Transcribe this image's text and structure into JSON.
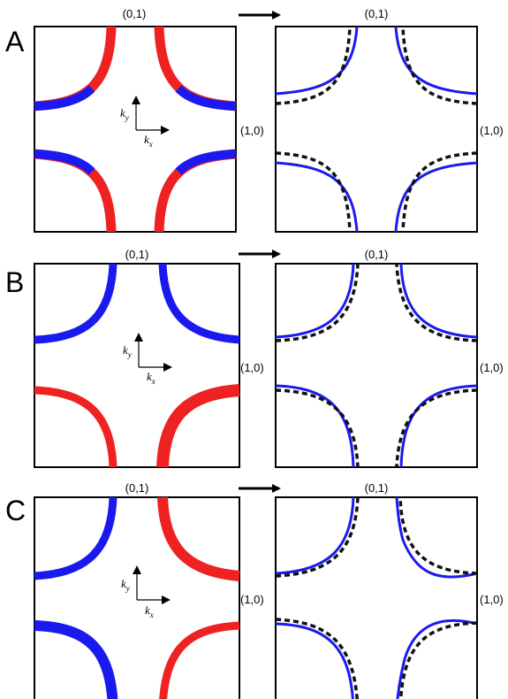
{
  "rows": [
    {
      "letter": "A",
      "left": {
        "top_label": "(0,1)",
        "right_label": "(1,0)",
        "ky": "k",
        "ky_sub": "y",
        "kx": "k",
        "kx_sub": "x"
      },
      "right": {
        "top_label": "(0,1)",
        "right_label": "(1,0)"
      }
    },
    {
      "letter": "B",
      "left": {
        "top_label": "(0,1)",
        "right_label": "(1,0)",
        "ky": "k",
        "ky_sub": "y",
        "kx": "k",
        "kx_sub": "x"
      },
      "right": {
        "top_label": "(0,1)",
        "right_label": "(1,0)"
      }
    },
    {
      "letter": "C",
      "left": {
        "top_label": "(0,1)",
        "right_label": "(1,0)",
        "ky": "k",
        "ky_sub": "y",
        "kx": "k",
        "kx_sub": "x"
      },
      "right": {
        "top_label": "(0,1)",
        "right_label": "(1,0)"
      }
    }
  ],
  "colors": {
    "red": "#ee2222",
    "blue": "#1a1aee",
    "dashed": "#111111",
    "frame": "#000000"
  }
}
